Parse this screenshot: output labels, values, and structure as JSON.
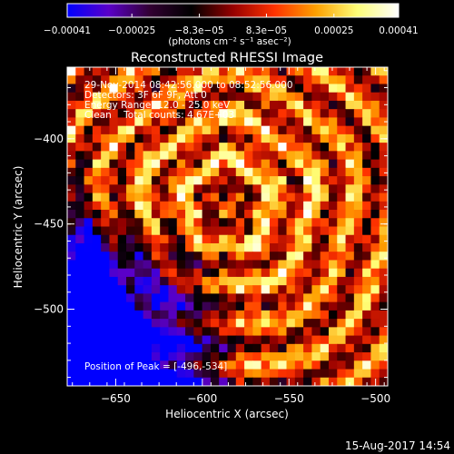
{
  "chart_data": {
    "type": "heatmap",
    "title": "Reconstructed RHESSI Image",
    "xlabel": "Heliocentric X (arcsec)",
    "ylabel": "Heliocentric Y (arcsec)",
    "xlim": [
      -678,
      -493
    ],
    "ylim": [
      -545,
      -358
    ],
    "xticks": [
      -650,
      -600,
      -550,
      -500
    ],
    "xtick_labels": [
      "−650",
      "−600",
      "−550",
      "−500"
    ],
    "yticks": [
      -400,
      -450,
      -500
    ],
    "ytick_labels": [
      "−400",
      "−450",
      "−500"
    ],
    "colorbar": {
      "min": -0.00041,
      "max": 0.00041,
      "ticks": [
        -0.00041,
        -0.00025,
        -8.3e-05,
        8.3e-05,
        0.00025,
        0.00041
      ],
      "tick_labels": [
        "−0.00041",
        "−0.00025",
        "−8.3e−05",
        "8.3e−05",
        "0.00025",
        "0.00041"
      ],
      "units_label": "(photons cm⁻² s⁻¹ asec⁻²)",
      "colormap": [
        "#0000ff",
        "#5a00c8",
        "#320032",
        "#000000",
        "#960000",
        "#ff3200",
        "#ffa000",
        "#ffff78",
        "#ffffff"
      ]
    },
    "annotations": [
      "29-Nov-2014 08:42:56.000 to 08:52:56.000",
      "Detectors: 3F 6F 9F, Att 0",
      "Energy Range: 12.0 - 25.0 keV",
      "Clean    Total counts: 4.67E+03"
    ],
    "peak_label": "Position of Peak = [-496,-534]",
    "peak_position": [
      -496,
      -534
    ],
    "grid": false
  },
  "footer": {
    "timestamp": "15-Aug-2017 14:54"
  }
}
